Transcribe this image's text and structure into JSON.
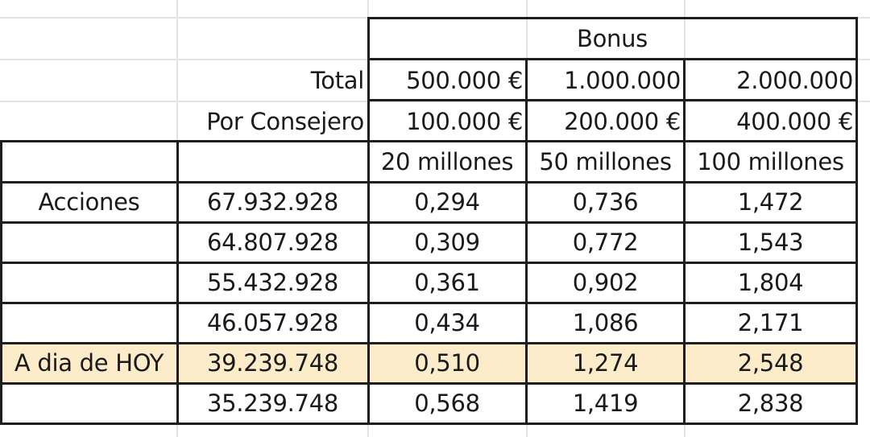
{
  "header": {
    "bonus_label": "Bonus",
    "total_label": "Total",
    "per_director_label": "Por Consejero",
    "total_values": [
      "500.000 €",
      "1.000.000",
      "2.000.000"
    ],
    "per_director_values": [
      "100.000 €",
      "200.000 €",
      "400.000 €"
    ],
    "scenario_labels": [
      "20 millones",
      "50 millones",
      "100 millones"
    ]
  },
  "rows": [
    {
      "label": "Acciones",
      "shares": "67.932.928",
      "values": [
        "0,294",
        "0,736",
        "1,472"
      ],
      "highlight": false
    },
    {
      "label": "",
      "shares": "64.807.928",
      "values": [
        "0,309",
        "0,772",
        "1,543"
      ],
      "highlight": false
    },
    {
      "label": "",
      "shares": "55.432.928",
      "values": [
        "0,361",
        "0,902",
        "1,804"
      ],
      "highlight": false
    },
    {
      "label": "",
      "shares": "46.057.928",
      "values": [
        "0,434",
        "1,086",
        "2,171"
      ],
      "highlight": false
    },
    {
      "label": "A dia de HOY",
      "shares": "39.239.748",
      "values": [
        "0,510",
        "1,274",
        "2,548"
      ],
      "highlight": true
    },
    {
      "label": "",
      "shares": "35.239.748",
      "values": [
        "0,568",
        "1,419",
        "2,838"
      ],
      "highlight": false
    }
  ],
  "colors": {
    "highlight": "#fdecca",
    "border": "#1e1e1e",
    "gridline": "#e3e3e3"
  }
}
